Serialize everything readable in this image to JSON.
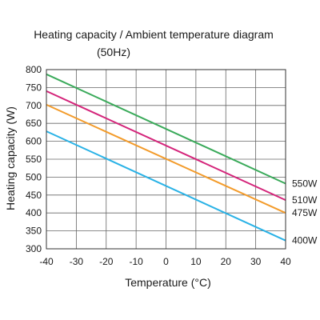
{
  "chart_data": {
    "type": "line",
    "title": "Heating capacity / Ambient temperature diagram",
    "subtitle": "(50Hz)",
    "xlabel": "Temperature (°C)",
    "ylabel": "Heating capacity (W)",
    "xlim": [
      -40,
      40
    ],
    "ylim": [
      300,
      800
    ],
    "x_ticks": [
      -40,
      -30,
      -20,
      -10,
      0,
      10,
      20,
      30,
      40
    ],
    "y_ticks": [
      300,
      350,
      400,
      450,
      500,
      550,
      600,
      650,
      700,
      750,
      800
    ],
    "grid": true,
    "series": [
      {
        "name": "550W",
        "color": "#3aaa5a",
        "x": [
          -40,
          40
        ],
        "y": [
          787,
          482
        ]
      },
      {
        "name": "510W",
        "color": "#d4247a",
        "x": [
          -40,
          40
        ],
        "y": [
          740,
          436
        ]
      },
      {
        "name": "475W",
        "color": "#f39b2a",
        "x": [
          -40,
          40
        ],
        "y": [
          702,
          400
        ]
      },
      {
        "name": "400W",
        "color": "#29b2e6",
        "x": [
          -40,
          40
        ],
        "y": [
          628,
          323
        ]
      }
    ]
  }
}
